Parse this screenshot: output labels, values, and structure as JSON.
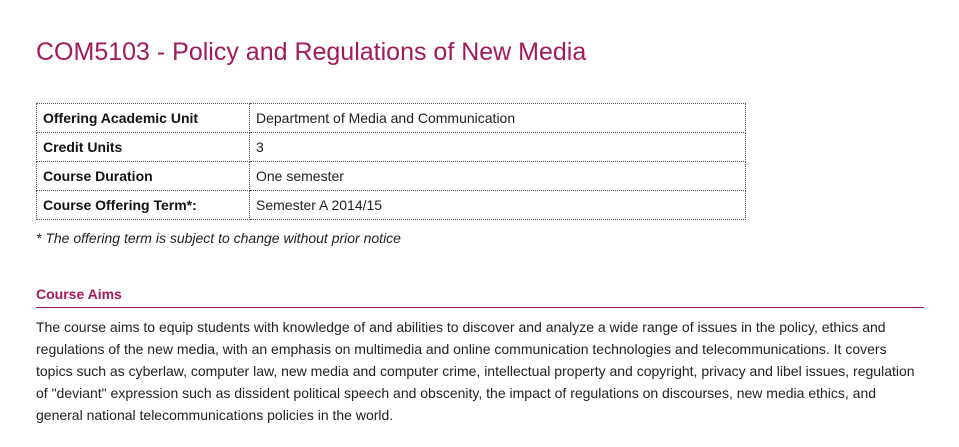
{
  "course": {
    "title": "COM5103 - Policy and Regulations of New Media"
  },
  "info_table": {
    "rows": [
      {
        "label": "Offering Academic Unit",
        "value": "Department of Media and Communication"
      },
      {
        "label": "Credit Units",
        "value": "3"
      },
      {
        "label": "Course Duration",
        "value": "One semester"
      },
      {
        "label": "Course Offering Term*:",
        "value": "Semester A 2014/15"
      }
    ]
  },
  "note": "* The offering term is subject to change without prior notice",
  "course_aims": {
    "heading": "Course Aims",
    "body": "The course aims to equip students with knowledge of and abilities to discover and analyze a wide range of issues in the policy, ethics and regulations of the new media, with an emphasis on multimedia and online communication technologies and telecommunications. It covers topics such as cyberlaw, computer law, new media and computer crime, intellectual property and copyright, privacy and libel issues, regulation of \"deviant\" expression such as dissident political speech and obscenity, the impact of regulations on discourses, new media ethics, and general national telecommunications policies in the world."
  },
  "colors": {
    "accent": "#a3195b",
    "text": "#222222"
  }
}
